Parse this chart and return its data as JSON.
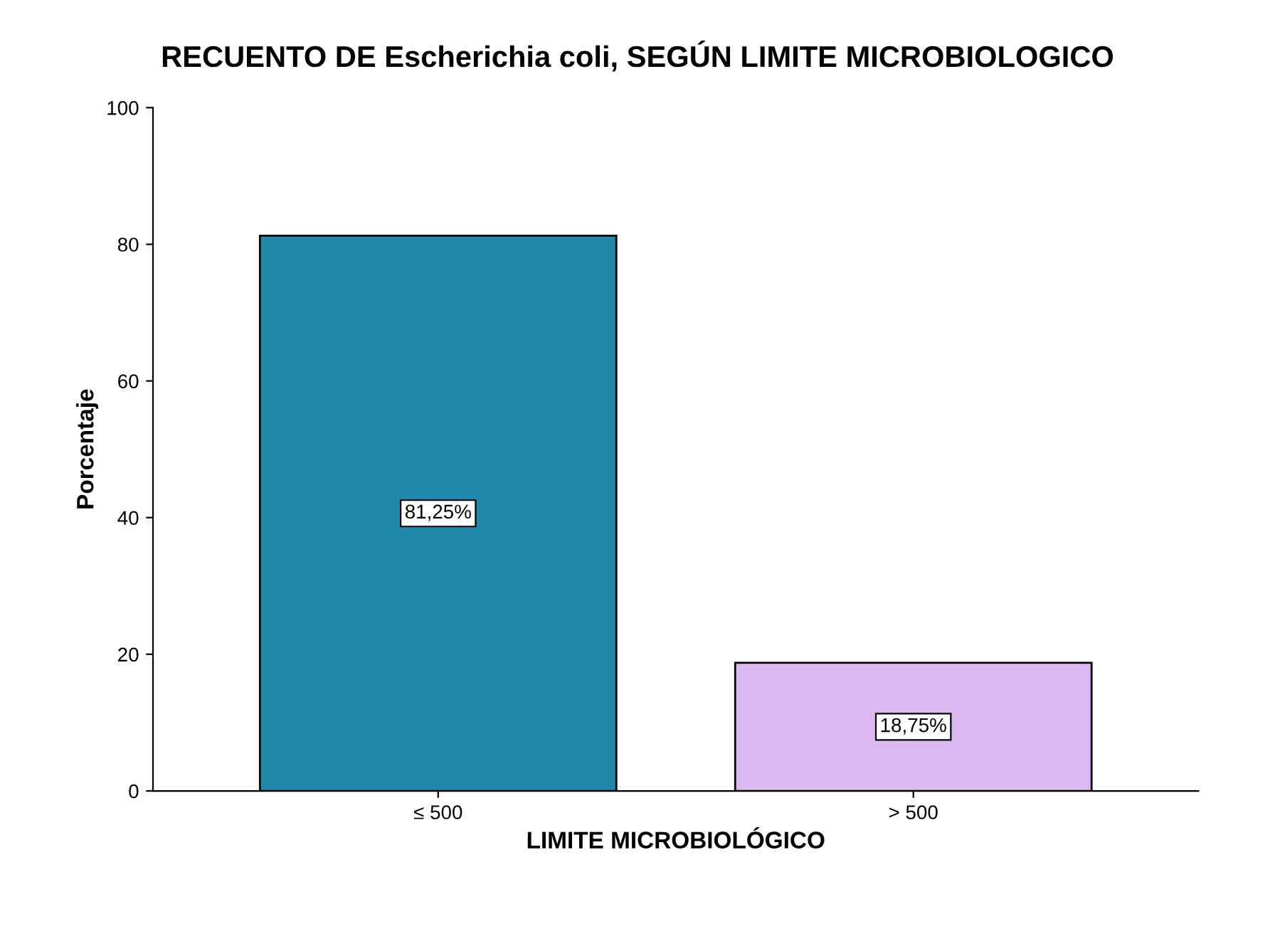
{
  "chart_data": {
    "type": "bar",
    "title": "RECUENTO DE Escherichia coli, SEGÚN LIMITE MICROBIOLOGICO",
    "xlabel": "LIMITE MICROBIOLÓGICO",
    "ylabel": "Porcentaje",
    "categories": [
      "≤ 500",
      "> 500"
    ],
    "values": [
      81.25,
      18.75
    ],
    "colors": [
      "#2389ab",
      "#dcb8f0"
    ],
    "value_labels": [
      "81,25%",
      "18,75%"
    ],
    "ylim": [
      0,
      100
    ],
    "yticks": [
      0,
      20,
      40,
      60,
      80,
      100
    ],
    "grid": false,
    "legend": false
  }
}
